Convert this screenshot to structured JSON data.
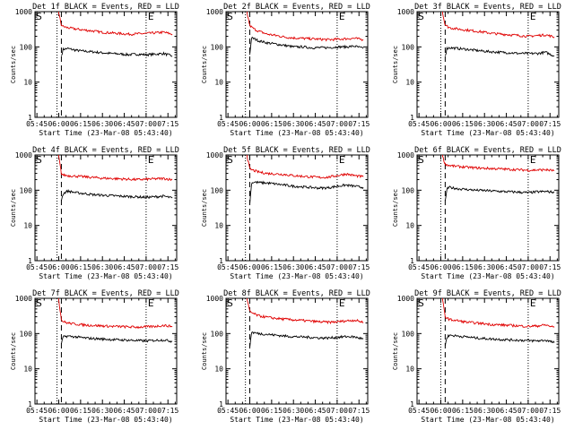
{
  "figure": {
    "colors": {
      "events": "#000000",
      "lld": "#e00000",
      "axes": "#000000",
      "background": "#ffffff"
    },
    "start_label": "S",
    "end_label": "E",
    "xlabel": "Start Time (23-Mar-08 05:43:40)",
    "ylabel": "Counts/sec",
    "x_ticks": [
      "05:45",
      "06:00",
      "06:15",
      "06:30",
      "06:45",
      "07:00",
      "07:15"
    ],
    "x_tick_hours": [
      5.75,
      6.0,
      6.25,
      6.5,
      6.75,
      7.0,
      7.25
    ],
    "xlim_hours": [
      5.7278,
      7.35
    ],
    "y_ticks": [
      "1",
      "10",
      "100",
      "1000"
    ],
    "y_tick_values": [
      1,
      10,
      100,
      1000
    ],
    "ylim": [
      1,
      1000
    ],
    "y_scale": "log"
  },
  "chart_data": [
    {
      "type": "line",
      "title": "Det 1f BLACK = Events, RED = LLD",
      "start_marker": 5.73,
      "dotted_marker_1": 5.98,
      "dashed_marker": 6.03,
      "dotted_marker_2": 7.0,
      "end_marker": 7.0,
      "series": [
        {
          "name": "Events",
          "x": [
            6.03,
            6.05,
            6.1,
            6.2,
            6.3,
            6.4,
            6.5,
            6.6,
            6.7,
            6.8,
            6.9,
            7.0,
            7.1,
            7.2,
            7.3
          ],
          "y": [
            55,
            85,
            90,
            80,
            75,
            72,
            68,
            65,
            63,
            60,
            62,
            60,
            62,
            65,
            55
          ]
        },
        {
          "name": "LLD",
          "x": [
            6.0,
            6.03,
            6.05,
            6.1,
            6.2,
            6.3,
            6.4,
            6.5,
            6.6,
            6.7,
            6.8,
            6.9,
            7.0,
            7.1,
            7.2,
            7.3
          ],
          "y": [
            900,
            420,
            380,
            350,
            320,
            300,
            280,
            260,
            250,
            240,
            230,
            235,
            240,
            250,
            260,
            230
          ]
        }
      ]
    },
    {
      "type": "line",
      "title": "Det 2f BLACK = Events, RED = LLD",
      "start_marker": 5.73,
      "dotted_marker_1": 5.95,
      "dashed_marker": 6.0,
      "dotted_marker_2": 7.0,
      "end_marker": 7.0,
      "series": [
        {
          "name": "Events",
          "x": [
            6.0,
            6.02,
            6.05,
            6.1,
            6.2,
            6.3,
            6.4,
            6.5,
            6.6,
            6.7,
            6.8,
            6.9,
            7.0,
            7.1,
            7.2,
            7.3
          ],
          "y": [
            60,
            180,
            170,
            150,
            130,
            120,
            110,
            100,
            100,
            95,
            95,
            95,
            100,
            100,
            105,
            90
          ]
        },
        {
          "name": "LLD",
          "x": [
            5.97,
            6.0,
            6.05,
            6.1,
            6.2,
            6.3,
            6.4,
            6.5,
            6.6,
            6.7,
            6.8,
            6.9,
            7.0,
            7.1,
            7.2,
            7.3
          ],
          "y": [
            900,
            400,
            320,
            280,
            230,
            210,
            190,
            180,
            175,
            170,
            165,
            160,
            165,
            170,
            175,
            160
          ]
        }
      ]
    },
    {
      "type": "line",
      "title": "Det 3f BLACK = Events, RED = LLD",
      "start_marker": 5.73,
      "dotted_marker_1": 6.0,
      "dashed_marker": 6.05,
      "dotted_marker_2": 7.0,
      "end_marker": 7.0,
      "series": [
        {
          "name": "Events",
          "x": [
            6.05,
            6.07,
            6.1,
            6.2,
            6.3,
            6.4,
            6.5,
            6.6,
            6.7,
            6.8,
            6.9,
            7.0,
            7.1,
            7.2,
            7.3
          ],
          "y": [
            55,
            90,
            95,
            90,
            85,
            80,
            75,
            72,
            70,
            68,
            65,
            65,
            65,
            70,
            55
          ]
        },
        {
          "name": "LLD",
          "x": [
            6.02,
            6.05,
            6.1,
            6.2,
            6.3,
            6.4,
            6.5,
            6.6,
            6.7,
            6.8,
            6.9,
            7.0,
            7.1,
            7.2,
            7.3
          ],
          "y": [
            900,
            420,
            350,
            320,
            300,
            280,
            260,
            240,
            230,
            220,
            210,
            200,
            210,
            220,
            190
          ]
        }
      ]
    },
    {
      "type": "line",
      "title": "Det 4f BLACK = Events, RED = LLD",
      "start_marker": 5.73,
      "dotted_marker_1": 5.98,
      "dashed_marker": 6.03,
      "dotted_marker_2": 7.0,
      "end_marker": 7.0,
      "series": [
        {
          "name": "Events",
          "x": [
            6.03,
            6.05,
            6.1,
            6.2,
            6.3,
            6.4,
            6.5,
            6.6,
            6.7,
            6.8,
            6.9,
            7.0,
            7.1,
            7.2,
            7.3
          ],
          "y": [
            50,
            80,
            95,
            85,
            80,
            75,
            72,
            70,
            68,
            66,
            65,
            63,
            65,
            68,
            60
          ]
        },
        {
          "name": "LLD",
          "x": [
            6.0,
            6.03,
            6.05,
            6.1,
            6.2,
            6.3,
            6.4,
            6.5,
            6.6,
            6.7,
            6.8,
            6.9,
            7.0,
            7.1,
            7.2,
            7.3
          ],
          "y": [
            900,
            300,
            270,
            260,
            250,
            240,
            230,
            220,
            215,
            210,
            205,
            200,
            205,
            210,
            215,
            200
          ]
        }
      ]
    },
    {
      "type": "line",
      "title": "Det 5f BLACK = Events, RED = LLD",
      "start_marker": 5.73,
      "dotted_marker_1": 5.95,
      "dashed_marker": 6.0,
      "dotted_marker_2": 7.0,
      "end_marker": 7.0,
      "series": [
        {
          "name": "Events",
          "x": [
            6.0,
            6.02,
            6.05,
            6.1,
            6.2,
            6.3,
            6.4,
            6.5,
            6.6,
            6.7,
            6.8,
            6.9,
            7.0,
            7.1,
            7.2,
            7.3
          ],
          "y": [
            40,
            160,
            170,
            165,
            160,
            150,
            140,
            130,
            125,
            120,
            115,
            118,
            130,
            140,
            130,
            120
          ]
        },
        {
          "name": "LLD",
          "x": [
            5.97,
            6.0,
            6.05,
            6.1,
            6.2,
            6.3,
            6.4,
            6.5,
            6.6,
            6.7,
            6.8,
            6.9,
            7.0,
            7.1,
            7.2,
            7.3
          ],
          "y": [
            900,
            400,
            360,
            330,
            300,
            290,
            280,
            260,
            250,
            240,
            230,
            235,
            260,
            290,
            260,
            240
          ]
        }
      ]
    },
    {
      "type": "line",
      "title": "Det 6f BLACK = Events, RED = LLD",
      "start_marker": 5.73,
      "dotted_marker_1": 6.0,
      "dashed_marker": 6.05,
      "dotted_marker_2": 7.0,
      "end_marker": 7.0,
      "series": [
        {
          "name": "Events",
          "x": [
            6.05,
            6.07,
            6.1,
            6.2,
            6.3,
            6.4,
            6.5,
            6.6,
            6.7,
            6.8,
            6.9,
            7.0,
            7.1,
            7.2,
            7.3
          ],
          "y": [
            50,
            110,
            120,
            110,
            105,
            100,
            98,
            95,
            92,
            90,
            88,
            85,
            90,
            92,
            88
          ]
        },
        {
          "name": "LLD",
          "x": [
            6.02,
            6.05,
            6.1,
            6.2,
            6.3,
            6.4,
            6.5,
            6.6,
            6.7,
            6.8,
            6.9,
            7.0,
            7.1,
            7.2,
            7.3
          ],
          "y": [
            900,
            550,
            500,
            470,
            450,
            430,
            420,
            410,
            400,
            390,
            380,
            370,
            375,
            380,
            360
          ]
        }
      ]
    },
    {
      "type": "line",
      "title": "Det 7f BLACK = Events, RED = LLD",
      "start_marker": 5.73,
      "dotted_marker_1": 5.98,
      "dashed_marker": 6.03,
      "dotted_marker_2": 7.0,
      "end_marker": 7.0,
      "series": [
        {
          "name": "Events",
          "x": [
            6.03,
            6.05,
            6.1,
            6.2,
            6.3,
            6.4,
            6.5,
            6.6,
            6.7,
            6.8,
            6.9,
            7.0,
            7.1,
            7.2,
            7.3
          ],
          "y": [
            50,
            80,
            85,
            80,
            75,
            72,
            70,
            68,
            66,
            65,
            63,
            62,
            64,
            66,
            60
          ]
        },
        {
          "name": "LLD",
          "x": [
            6.0,
            6.03,
            6.05,
            6.1,
            6.2,
            6.3,
            6.4,
            6.5,
            6.6,
            6.7,
            6.8,
            6.9,
            7.0,
            7.1,
            7.2,
            7.3
          ],
          "y": [
            900,
            250,
            220,
            200,
            185,
            175,
            170,
            165,
            160,
            158,
            155,
            152,
            155,
            160,
            170,
            160
          ]
        }
      ]
    },
    {
      "type": "line",
      "title": "Det 8f BLACK = Events, RED = LLD",
      "start_marker": 5.73,
      "dotted_marker_1": 5.95,
      "dashed_marker": 6.0,
      "dotted_marker_2": 7.0,
      "end_marker": 7.0,
      "series": [
        {
          "name": "Events",
          "x": [
            6.0,
            6.02,
            6.05,
            6.1,
            6.2,
            6.3,
            6.4,
            6.5,
            6.6,
            6.7,
            6.8,
            6.9,
            7.0,
            7.1,
            7.2,
            7.3
          ],
          "y": [
            40,
            110,
            105,
            100,
            95,
            90,
            85,
            82,
            80,
            78,
            75,
            75,
            78,
            82,
            80,
            70
          ]
        },
        {
          "name": "LLD",
          "x": [
            5.97,
            6.0,
            6.05,
            6.1,
            6.2,
            6.3,
            6.4,
            6.5,
            6.6,
            6.7,
            6.8,
            6.9,
            7.0,
            7.1,
            7.2,
            7.3
          ],
          "y": [
            900,
            420,
            360,
            320,
            290,
            270,
            255,
            245,
            235,
            225,
            215,
            210,
            215,
            230,
            240,
            210
          ]
        }
      ]
    },
    {
      "type": "line",
      "title": "Det 9f BLACK = Events, RED = LLD",
      "start_marker": 5.73,
      "dotted_marker_1": 6.0,
      "dashed_marker": 6.05,
      "dotted_marker_2": 7.0,
      "end_marker": 7.0,
      "series": [
        {
          "name": "Events",
          "x": [
            6.05,
            6.07,
            6.1,
            6.2,
            6.3,
            6.4,
            6.5,
            6.6,
            6.7,
            6.8,
            6.9,
            7.0,
            7.1,
            7.2,
            7.3
          ],
          "y": [
            45,
            80,
            90,
            85,
            80,
            75,
            72,
            70,
            68,
            66,
            65,
            63,
            62,
            65,
            55
          ]
        },
        {
          "name": "LLD",
          "x": [
            6.02,
            6.05,
            6.1,
            6.2,
            6.3,
            6.4,
            6.5,
            6.6,
            6.7,
            6.8,
            6.9,
            7.0,
            7.1,
            7.2,
            7.3
          ],
          "y": [
            900,
            300,
            250,
            230,
            210,
            200,
            190,
            180,
            175,
            170,
            165,
            160,
            165,
            175,
            150
          ]
        }
      ]
    }
  ]
}
